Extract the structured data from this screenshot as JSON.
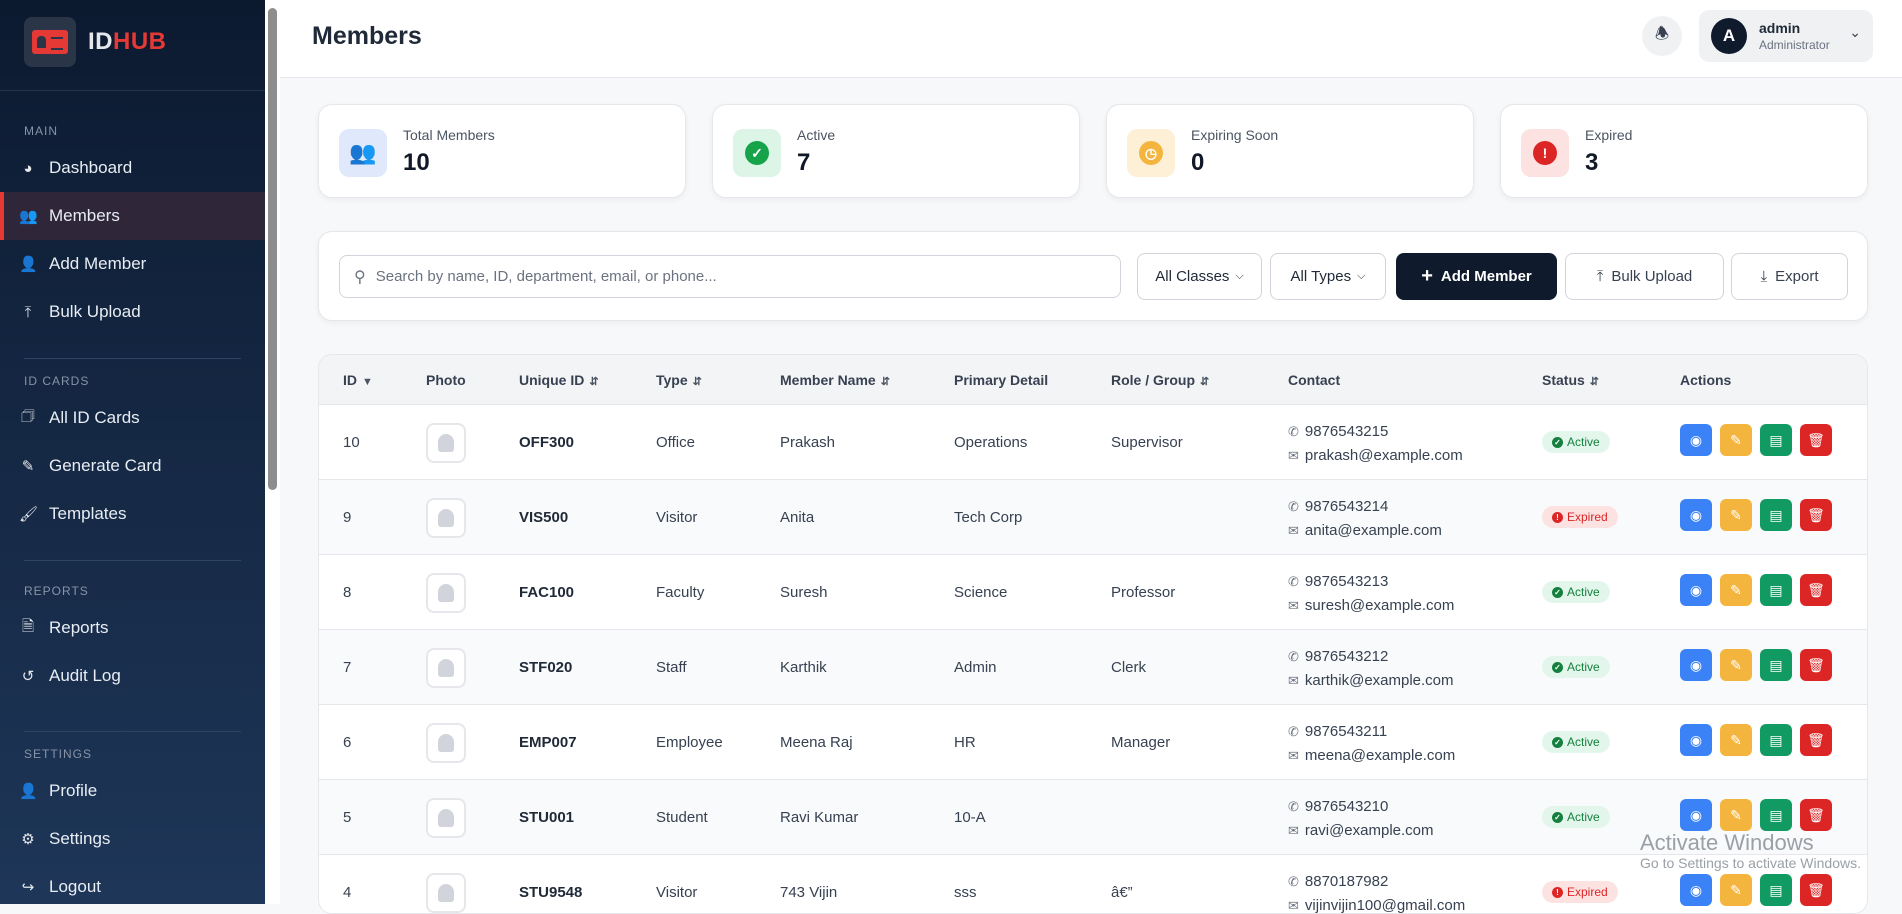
{
  "brand": {
    "part1": "ID",
    "part2": "HUB"
  },
  "sidebar": {
    "sections": [
      {
        "label": "MAIN",
        "items": [
          {
            "label": "Dashboard",
            "icon": "chart-pie-icon"
          },
          {
            "label": "Members",
            "icon": "users-icon",
            "active": true
          },
          {
            "label": "Add Member",
            "icon": "user-plus-icon"
          },
          {
            "label": "Bulk Upload",
            "icon": "upload-icon"
          }
        ]
      },
      {
        "label": "ID CARDS",
        "items": [
          {
            "label": "All ID Cards",
            "icon": "id-card-icon"
          },
          {
            "label": "Generate Card",
            "icon": "pen-icon"
          },
          {
            "label": "Templates",
            "icon": "brush-icon"
          }
        ]
      },
      {
        "label": "REPORTS",
        "items": [
          {
            "label": "Reports",
            "icon": "file-icon"
          },
          {
            "label": "Audit Log",
            "icon": "history-icon"
          }
        ]
      },
      {
        "label": "SETTINGS",
        "items": [
          {
            "label": "Profile",
            "icon": "user-gear-icon"
          },
          {
            "label": "Settings",
            "icon": "gear-icon"
          },
          {
            "label": "Logout",
            "icon": "logout-icon"
          }
        ]
      }
    ]
  },
  "header": {
    "title": "Members",
    "user": {
      "initial": "A",
      "name": "admin",
      "role": "Administrator"
    }
  },
  "stats": [
    {
      "label": "Total Members",
      "value": "10",
      "color": "#1e3a8a",
      "bg": "#e0e9fb"
    },
    {
      "label": "Active",
      "value": "7",
      "color": "#16a34a",
      "bg": "#dcf5e6"
    },
    {
      "label": "Expiring Soon",
      "value": "0",
      "color": "#f4b53f",
      "bg": "#fdf0d6"
    },
    {
      "label": "Expired",
      "value": "3",
      "color": "#dc2626",
      "bg": "#fde2e2"
    }
  ],
  "toolbar": {
    "search_placeholder": "Search by name, ID, department, email, or phone...",
    "class_filter": "All Classes",
    "type_filter": "All Types",
    "add_label": "Add Member",
    "bulk_label": "Bulk Upload",
    "export_label": "Export"
  },
  "table": {
    "headers": [
      "ID",
      "Photo",
      "Unique ID",
      "Type",
      "Member Name",
      "Primary Detail",
      "Role / Group",
      "Contact",
      "Status",
      "Actions"
    ],
    "rows": [
      {
        "id": "10",
        "uid": "OFF300",
        "type": "Office",
        "name": "Prakash",
        "primary": "Operations",
        "role": "Supervisor",
        "phone": "9876543215",
        "email": "prakash@example.com",
        "status": "Active"
      },
      {
        "id": "9",
        "uid": "VIS500",
        "type": "Visitor",
        "name": "Anita",
        "primary": "Tech Corp",
        "role": "",
        "phone": "9876543214",
        "email": "anita@example.com",
        "status": "Expired"
      },
      {
        "id": "8",
        "uid": "FAC100",
        "type": "Faculty",
        "name": "Suresh",
        "primary": "Science",
        "role": "Professor",
        "phone": "9876543213",
        "email": "suresh@example.com",
        "status": "Active"
      },
      {
        "id": "7",
        "uid": "STF020",
        "type": "Staff",
        "name": "Karthik",
        "primary": "Admin",
        "role": "Clerk",
        "phone": "9876543212",
        "email": "karthik@example.com",
        "status": "Active"
      },
      {
        "id": "6",
        "uid": "EMP007",
        "type": "Employee",
        "name": "Meena Raj",
        "primary": "HR",
        "role": "Manager",
        "phone": "9876543211",
        "email": "meena@example.com",
        "status": "Active"
      },
      {
        "id": "5",
        "uid": "STU001",
        "type": "Student",
        "name": "Ravi Kumar",
        "primary": "10-A",
        "role": "",
        "phone": "9876543210",
        "email": "ravi@example.com",
        "status": "Active"
      },
      {
        "id": "4",
        "uid": "STU9548",
        "type": "Visitor",
        "name": "743 Vijin",
        "primary": "sss",
        "role": "â€”",
        "phone": "8870187982",
        "email": "vijinvijin100@gmail.com",
        "status": "Expired"
      }
    ]
  },
  "watermark": {
    "line1": "Activate Windows",
    "line2": "Go to Settings to activate Windows."
  }
}
